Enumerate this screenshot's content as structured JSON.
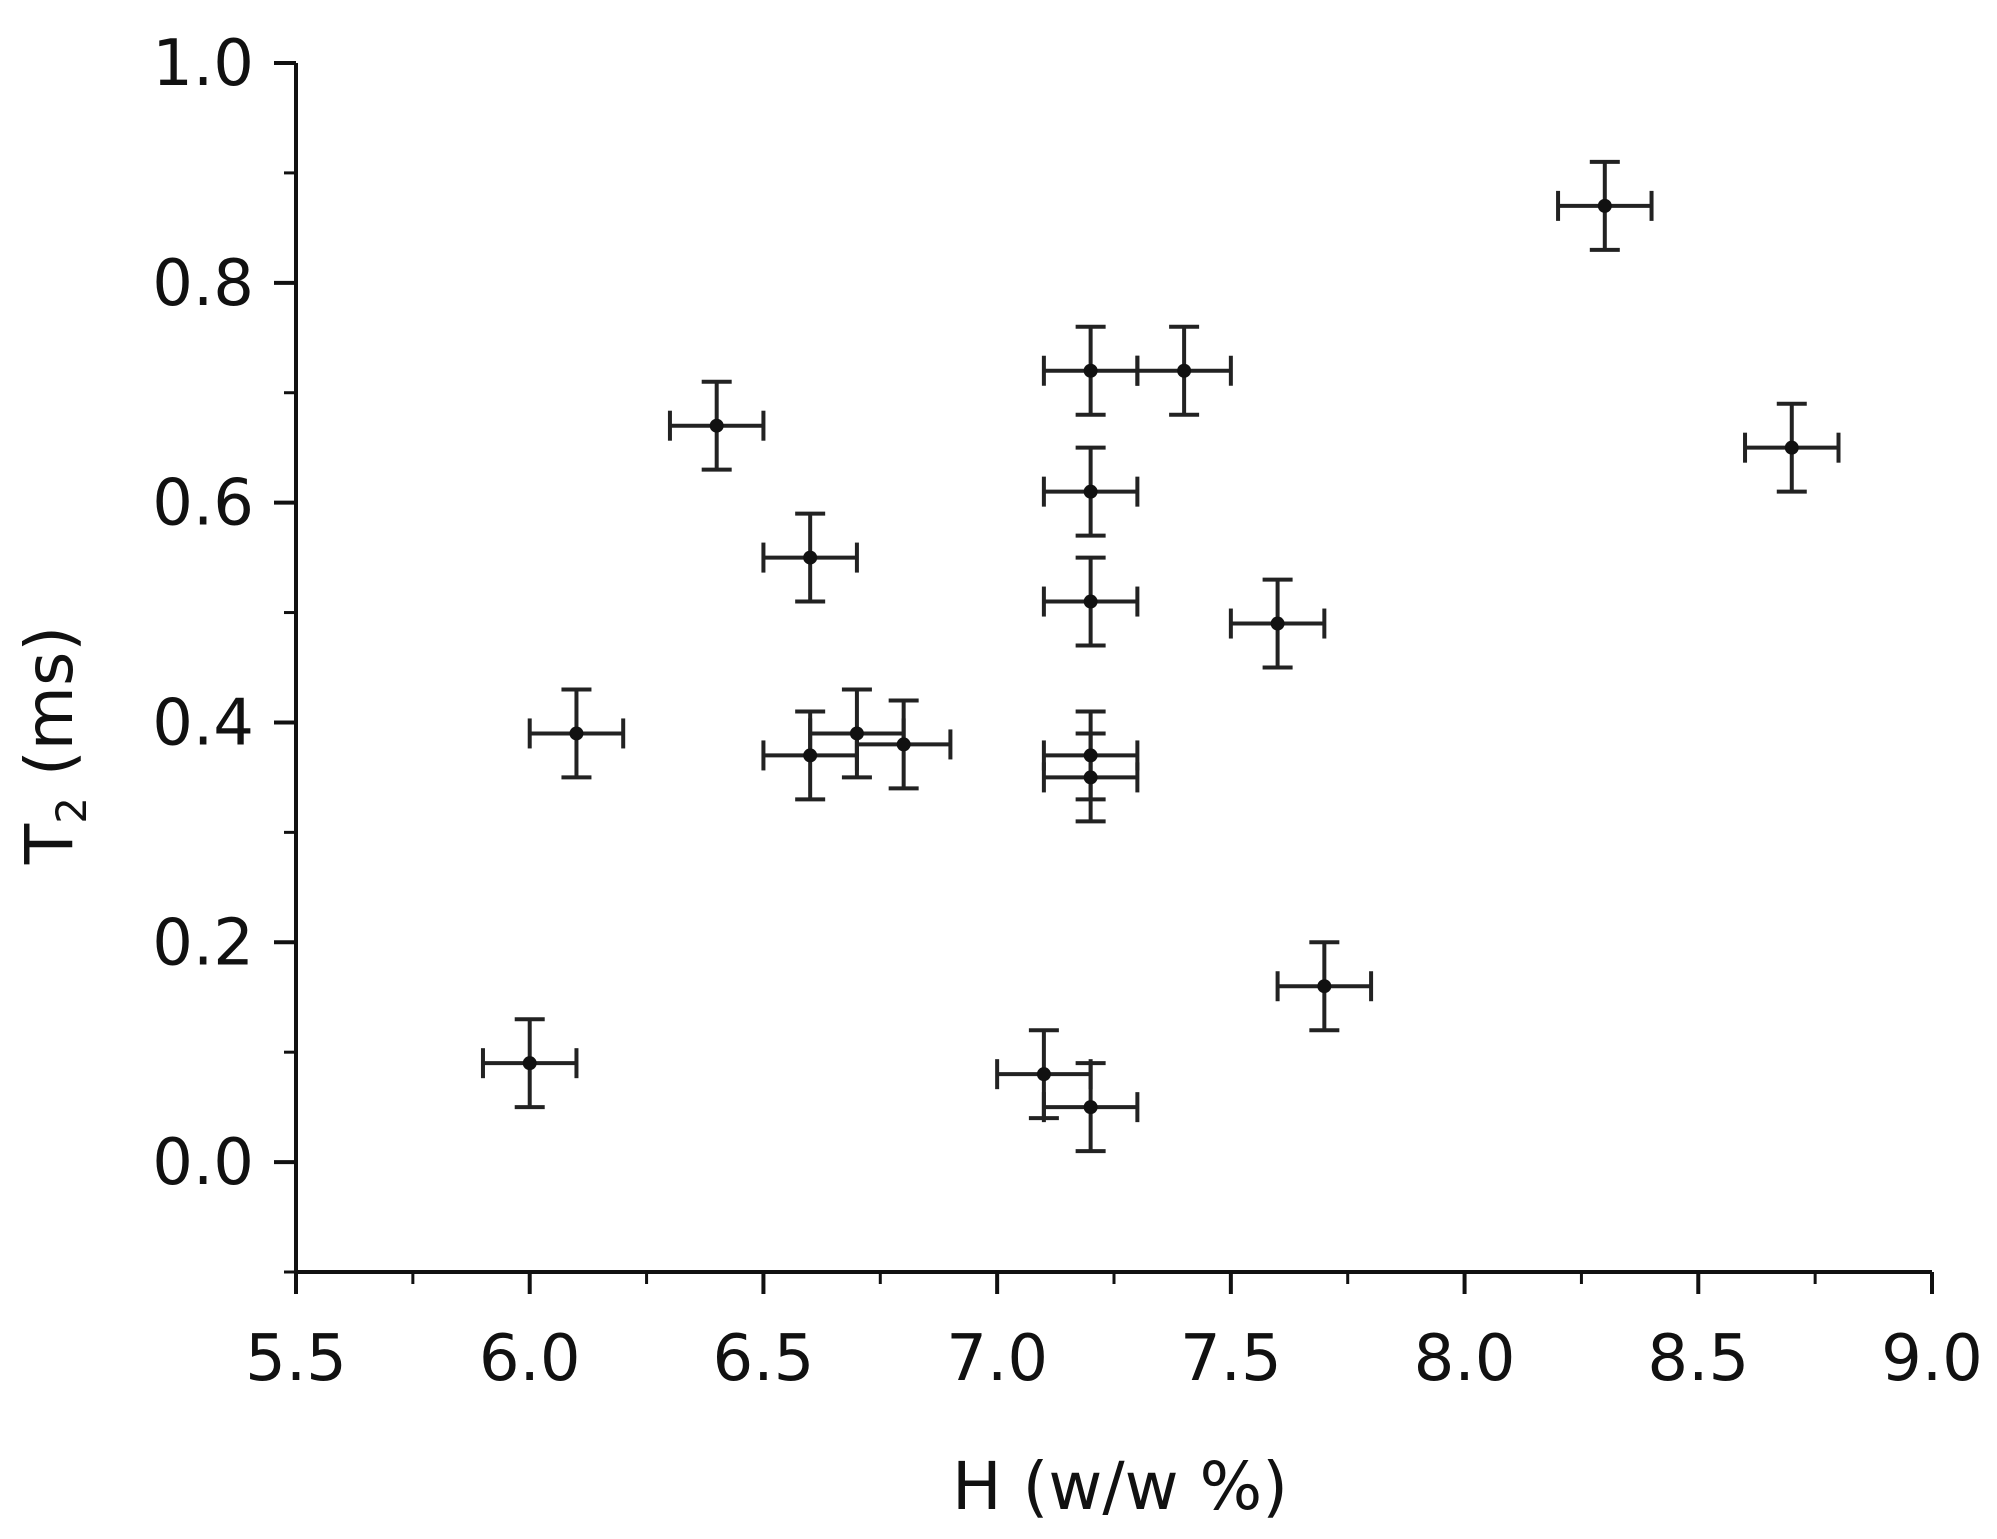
{
  "chart_data": {
    "type": "scatter",
    "title": "",
    "xlabel": "H (w/w %)",
    "ylabel": {
      "main": "T",
      "subscript": "2",
      "unit": " (ms)"
    },
    "xlim": [
      5.5,
      9.0
    ],
    "ylim": [
      -0.1,
      1.0
    ],
    "x_ticks": [
      5.5,
      6.0,
      6.5,
      7.0,
      7.5,
      8.0,
      8.5,
      9.0
    ],
    "x_tick_labels": [
      "5.5",
      "6.0",
      "6.5",
      "7.0",
      "7.5",
      "8.0",
      "8.5",
      "9.0"
    ],
    "y_ticks": [
      0.0,
      0.2,
      0.4,
      0.6,
      0.8,
      1.0
    ],
    "y_tick_labels": [
      "0.0",
      "0.2",
      "0.4",
      "0.6",
      "0.8",
      "1.0"
    ],
    "grid": false,
    "colors": {
      "axis": "#111111",
      "marker": "#111111",
      "errorbar": "#222222"
    },
    "series": [
      {
        "points": [
          {
            "x": 6.0,
            "y": 0.09,
            "xerr": 0.1,
            "yerr": 0.04
          },
          {
            "x": 6.1,
            "y": 0.39,
            "xerr": 0.1,
            "yerr": 0.04
          },
          {
            "x": 6.4,
            "y": 0.67,
            "xerr": 0.1,
            "yerr": 0.04
          },
          {
            "x": 6.6,
            "y": 0.55,
            "xerr": 0.1,
            "yerr": 0.04
          },
          {
            "x": 6.6,
            "y": 0.37,
            "xerr": 0.1,
            "yerr": 0.04
          },
          {
            "x": 6.7,
            "y": 0.39,
            "xerr": 0.1,
            "yerr": 0.04
          },
          {
            "x": 6.8,
            "y": 0.38,
            "xerr": 0.1,
            "yerr": 0.04
          },
          {
            "x": 7.1,
            "y": 0.08,
            "xerr": 0.1,
            "yerr": 0.04
          },
          {
            "x": 7.2,
            "y": 0.05,
            "xerr": 0.1,
            "yerr": 0.04
          },
          {
            "x": 7.2,
            "y": 0.37,
            "xerr": 0.1,
            "yerr": 0.04
          },
          {
            "x": 7.2,
            "y": 0.35,
            "xerr": 0.1,
            "yerr": 0.04
          },
          {
            "x": 7.2,
            "y": 0.51,
            "xerr": 0.1,
            "yerr": 0.04
          },
          {
            "x": 7.2,
            "y": 0.61,
            "xerr": 0.1,
            "yerr": 0.04
          },
          {
            "x": 7.2,
            "y": 0.72,
            "xerr": 0.1,
            "yerr": 0.04
          },
          {
            "x": 7.4,
            "y": 0.72,
            "xerr": 0.1,
            "yerr": 0.04
          },
          {
            "x": 7.6,
            "y": 0.49,
            "xerr": 0.1,
            "yerr": 0.04
          },
          {
            "x": 7.7,
            "y": 0.16,
            "xerr": 0.1,
            "yerr": 0.04
          },
          {
            "x": 8.3,
            "y": 0.87,
            "xerr": 0.1,
            "yerr": 0.04
          },
          {
            "x": 8.7,
            "y": 0.65,
            "xerr": 0.1,
            "yerr": 0.04
          }
        ]
      }
    ]
  }
}
